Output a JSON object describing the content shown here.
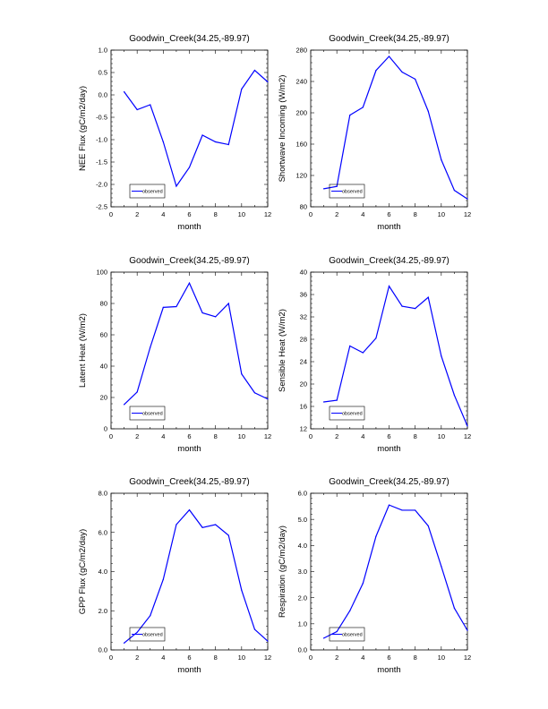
{
  "chart_data": [
    {
      "type": "line",
      "title": "Goodwin_Creek(34.25,-89.97)",
      "xlabel": "month",
      "ylabel": "NEE Flux (gC/m2/day)",
      "xlim": [
        0,
        12
      ],
      "ylim": [
        -2.5,
        1.0
      ],
      "xticks": [
        0,
        2,
        4,
        6,
        8,
        10,
        12
      ],
      "yticks": [
        -2.5,
        -2.0,
        -1.5,
        -1.0,
        -0.5,
        0.0,
        0.5,
        1.0
      ],
      "ytick_labels": [
        "-2.5",
        "-2.0",
        "-1.5",
        "-1.0",
        "-0.5",
        "0.0",
        "0.5",
        "1.0"
      ],
      "x": [
        1,
        2,
        3,
        4,
        5,
        6,
        7,
        8,
        9,
        10,
        11,
        12
      ],
      "series": [
        {
          "name": "observed",
          "color": "#0000ff",
          "values": [
            0.07,
            -0.33,
            -0.22,
            -1.05,
            -2.04,
            -1.62,
            -0.9,
            -1.05,
            -1.11,
            0.13,
            0.55,
            0.29
          ]
        }
      ],
      "legend": {
        "label": "observed",
        "position": "bottom-left"
      }
    },
    {
      "type": "line",
      "title": "Goodwin_Creek(34.25,-89.97)",
      "xlabel": "month",
      "ylabel": "Shortwave Incoming (W/m2)",
      "xlim": [
        0,
        12
      ],
      "ylim": [
        80,
        280
      ],
      "xticks": [
        0,
        2,
        4,
        6,
        8,
        10,
        12
      ],
      "yticks": [
        80,
        120,
        160,
        200,
        240,
        280
      ],
      "ytick_labels": [
        "80",
        "120",
        "160",
        "200",
        "240",
        "280"
      ],
      "x": [
        1,
        2,
        3,
        4,
        5,
        6,
        7,
        8,
        9,
        10,
        11,
        12
      ],
      "series": [
        {
          "name": "observed",
          "color": "#0000ff",
          "values": [
            103,
            106,
            197,
            207,
            254,
            272,
            252,
            243,
            202,
            140,
            101,
            90
          ]
        }
      ],
      "legend": {
        "label": "observed",
        "position": "bottom-left"
      }
    },
    {
      "type": "line",
      "title": "Goodwin_Creek(34.25,-89.97)",
      "xlabel": "month",
      "ylabel": "Latent Heat (W/m2)",
      "xlim": [
        0,
        12
      ],
      "ylim": [
        0,
        100
      ],
      "xticks": [
        0,
        2,
        4,
        6,
        8,
        10,
        12
      ],
      "yticks": [
        0,
        20,
        40,
        60,
        80,
        100
      ],
      "ytick_labels": [
        "0",
        "20",
        "40",
        "60",
        "80",
        "100"
      ],
      "x": [
        1,
        2,
        3,
        4,
        5,
        6,
        7,
        8,
        9,
        10,
        11,
        12
      ],
      "series": [
        {
          "name": "observed",
          "color": "#0000ff",
          "values": [
            15.5,
            23.5,
            52,
            77.5,
            78,
            93,
            74,
            71.5,
            80,
            35,
            23,
            19
          ]
        }
      ],
      "legend": {
        "label": "observed",
        "position": "bottom-left"
      }
    },
    {
      "type": "line",
      "title": "Goodwin_Creek(34.25,-89.97)",
      "xlabel": "month",
      "ylabel": "Sensible Heat (W/m2)",
      "xlim": [
        0,
        12
      ],
      "ylim": [
        12,
        40
      ],
      "xticks": [
        0,
        2,
        4,
        6,
        8,
        10,
        12
      ],
      "yticks": [
        12,
        16,
        20,
        24,
        28,
        32,
        36,
        40
      ],
      "ytick_labels": [
        "12",
        "16",
        "20",
        "24",
        "28",
        "32",
        "36",
        "40"
      ],
      "x": [
        1,
        2,
        3,
        4,
        5,
        6,
        7,
        8,
        9,
        10,
        11,
        12
      ],
      "series": [
        {
          "name": "observed",
          "color": "#0000ff",
          "values": [
            16.8,
            17.1,
            26.8,
            25.6,
            28.2,
            37.5,
            33.9,
            33.5,
            35.5,
            25.0,
            18.0,
            12.5
          ]
        }
      ],
      "legend": {
        "label": "observed",
        "position": "bottom-left"
      }
    },
    {
      "type": "line",
      "title": "Goodwin_Creek(34.25,-89.97)",
      "xlabel": "month",
      "ylabel": "GPP Flux (gC/m2/day)",
      "xlim": [
        0,
        12
      ],
      "ylim": [
        0,
        8
      ],
      "xticks": [
        0,
        2,
        4,
        6,
        8,
        10,
        12
      ],
      "yticks": [
        0,
        2,
        4,
        6,
        8
      ],
      "ytick_labels": [
        "0.0",
        "2.0",
        "4.0",
        "6.0",
        "8.0"
      ],
      "x": [
        1,
        2,
        3,
        4,
        5,
        6,
        7,
        8,
        9,
        10,
        11,
        12
      ],
      "series": [
        {
          "name": "observed",
          "color": "#0000ff",
          "values": [
            0.35,
            0.9,
            1.75,
            3.6,
            6.4,
            7.15,
            6.25,
            6.4,
            5.85,
            3.05,
            1.05,
            0.45
          ]
        }
      ],
      "legend": {
        "label": "observed",
        "position": "bottom-left"
      }
    },
    {
      "type": "line",
      "title": "Goodwin_Creek(34.25,-89.97)",
      "xlabel": "month",
      "ylabel": "Respiration (gC/m2/day)",
      "xlim": [
        0,
        12
      ],
      "ylim": [
        0,
        6
      ],
      "xticks": [
        0,
        2,
        4,
        6,
        8,
        10,
        12
      ],
      "yticks": [
        0,
        1,
        2,
        3,
        4,
        5,
        6
      ],
      "ytick_labels": [
        "0.0",
        "1.0",
        "2.0",
        "3.0",
        "4.0",
        "5.0",
        "6.0"
      ],
      "x": [
        1,
        2,
        3,
        4,
        5,
        6,
        7,
        8,
        9,
        10,
        11,
        12
      ],
      "series": [
        {
          "name": "observed",
          "color": "#0000ff",
          "values": [
            0.45,
            0.7,
            1.5,
            2.55,
            4.35,
            5.55,
            5.35,
            5.35,
            4.75,
            3.2,
            1.6,
            0.75
          ]
        }
      ],
      "legend": {
        "label": "observed",
        "position": "bottom-left"
      }
    }
  ]
}
